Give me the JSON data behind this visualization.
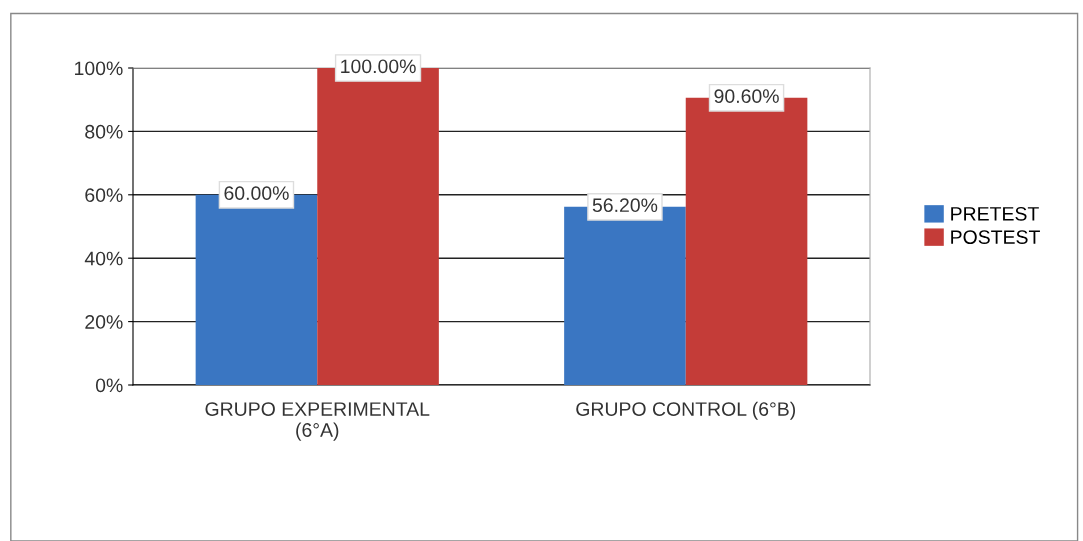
{
  "chart_data": {
    "type": "bar",
    "categories": [
      "GRUPO EXPERIMENTAL\n(6°A)",
      "GRUPO CONTROL (6°B)"
    ],
    "series": [
      {
        "name": "PRETEST",
        "color": "#3a76c2",
        "values": [
          60,
          56.2
        ],
        "value_labels": [
          "60.00%",
          "56.20%"
        ]
      },
      {
        "name": "POSTEST",
        "color": "#c43c38",
        "values": [
          100,
          90.6
        ],
        "value_labels": [
          "100.00%",
          "90.60%"
        ]
      }
    ],
    "ylim": [
      0,
      100
    ],
    "yticks": [
      {
        "value": 0,
        "label": "0%"
      },
      {
        "value": 20,
        "label": "20%"
      },
      {
        "value": 40,
        "label": "40%"
      },
      {
        "value": 60,
        "label": "60%"
      },
      {
        "value": 80,
        "label": "80%"
      },
      {
        "value": 100,
        "label": "100%"
      }
    ],
    "grid": "y",
    "legend": "right"
  }
}
